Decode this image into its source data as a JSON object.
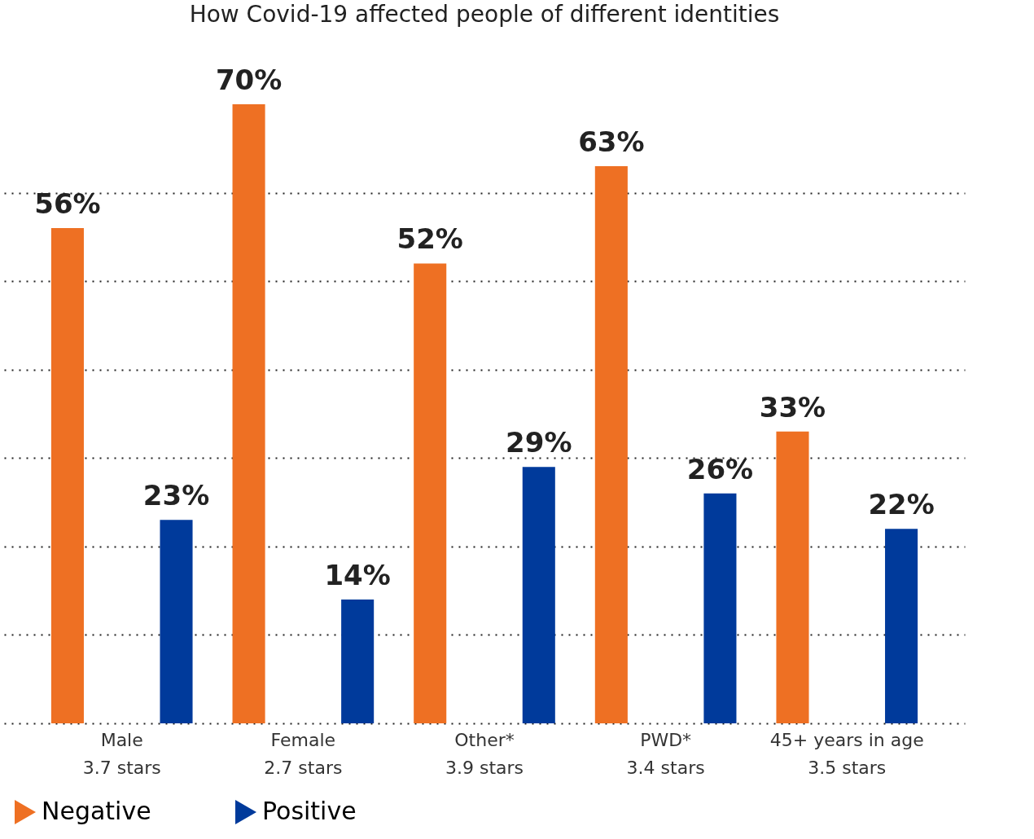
{
  "chart_data": {
    "type": "bar",
    "title": "How Covid-19 affected people of different identities",
    "categories": [
      "Male\n3.7 stars",
      "Female\n2.7 stars",
      "Other*\n3.9 stars",
      "PWD*\n3.4 stars",
      "45+ years in age\n3.5 stars"
    ],
    "series": [
      {
        "name": "Negative",
        "color": "#ee7023",
        "values": [
          56,
          70,
          52,
          63,
          33
        ],
        "value_labels": [
          "56%",
          "70%",
          "52%",
          "63%",
          "33%"
        ]
      },
      {
        "name": "Positive",
        "color": "#003a9b",
        "values": [
          23,
          14,
          29,
          26,
          22
        ],
        "value_labels": [
          "23%",
          "14%",
          "29%",
          "26%",
          "22%"
        ]
      }
    ],
    "yticks": [
      {
        "value": 0,
        "label": null
      },
      {
        "value": 10,
        "label": null
      },
      {
        "value": 20,
        "label": null
      },
      {
        "value": 30,
        "label": null
      },
      {
        "value": 40,
        "label": null
      },
      {
        "value": 50,
        "label": null
      },
      {
        "value": 60,
        "label": null
      }
    ],
    "grid": "y",
    "tick_labels": "x",
    "legend": "bottom left"
  }
}
